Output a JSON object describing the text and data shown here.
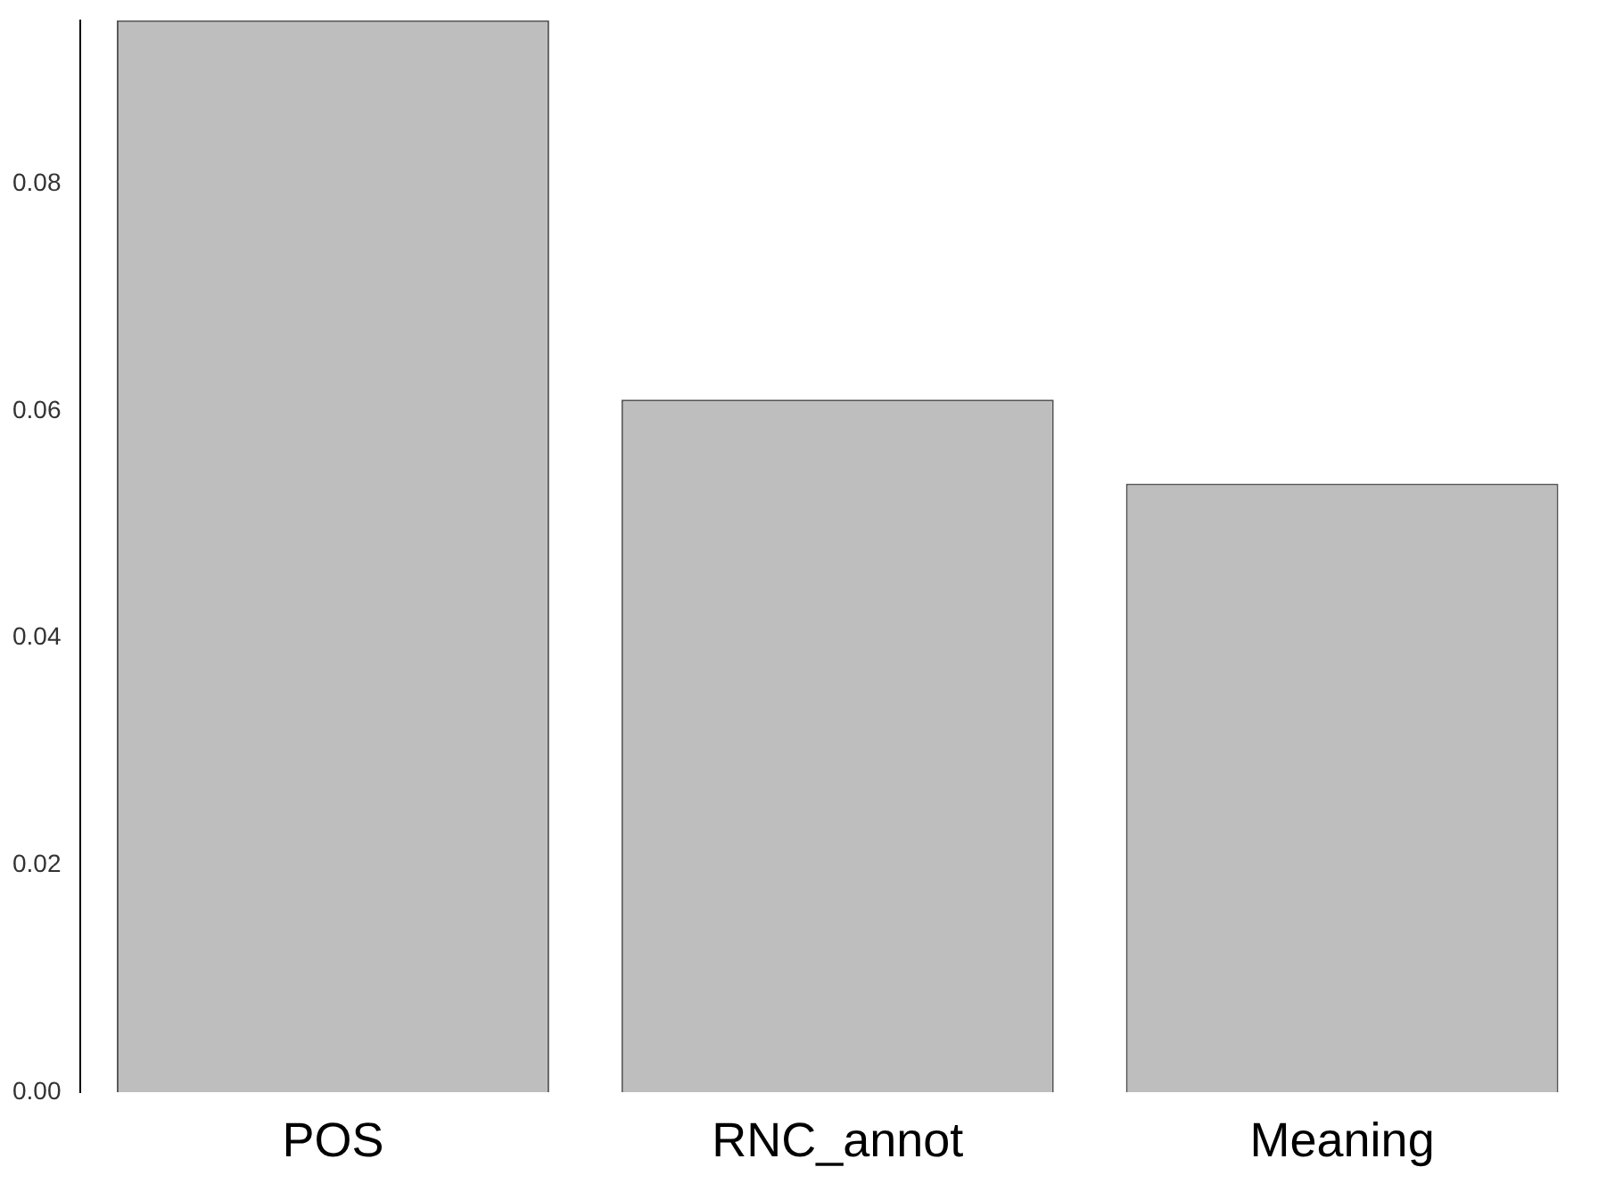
{
  "chart_data": {
    "type": "bar",
    "categories": [
      "POS",
      "RNC_annot",
      "Meaning"
    ],
    "values": [
      0.0944,
      0.061,
      0.0536
    ],
    "color": "#bebebe",
    "ylim": [
      0,
      0.0944
    ],
    "yticks": [
      {
        "value": 0,
        "label": "0.00"
      },
      {
        "value": 0.02,
        "label": "0.02"
      },
      {
        "value": 0.04,
        "label": "0.04"
      },
      {
        "value": 0.06,
        "label": "0.06"
      },
      {
        "value": 0.08,
        "label": "0.08"
      }
    ],
    "grid": false
  }
}
